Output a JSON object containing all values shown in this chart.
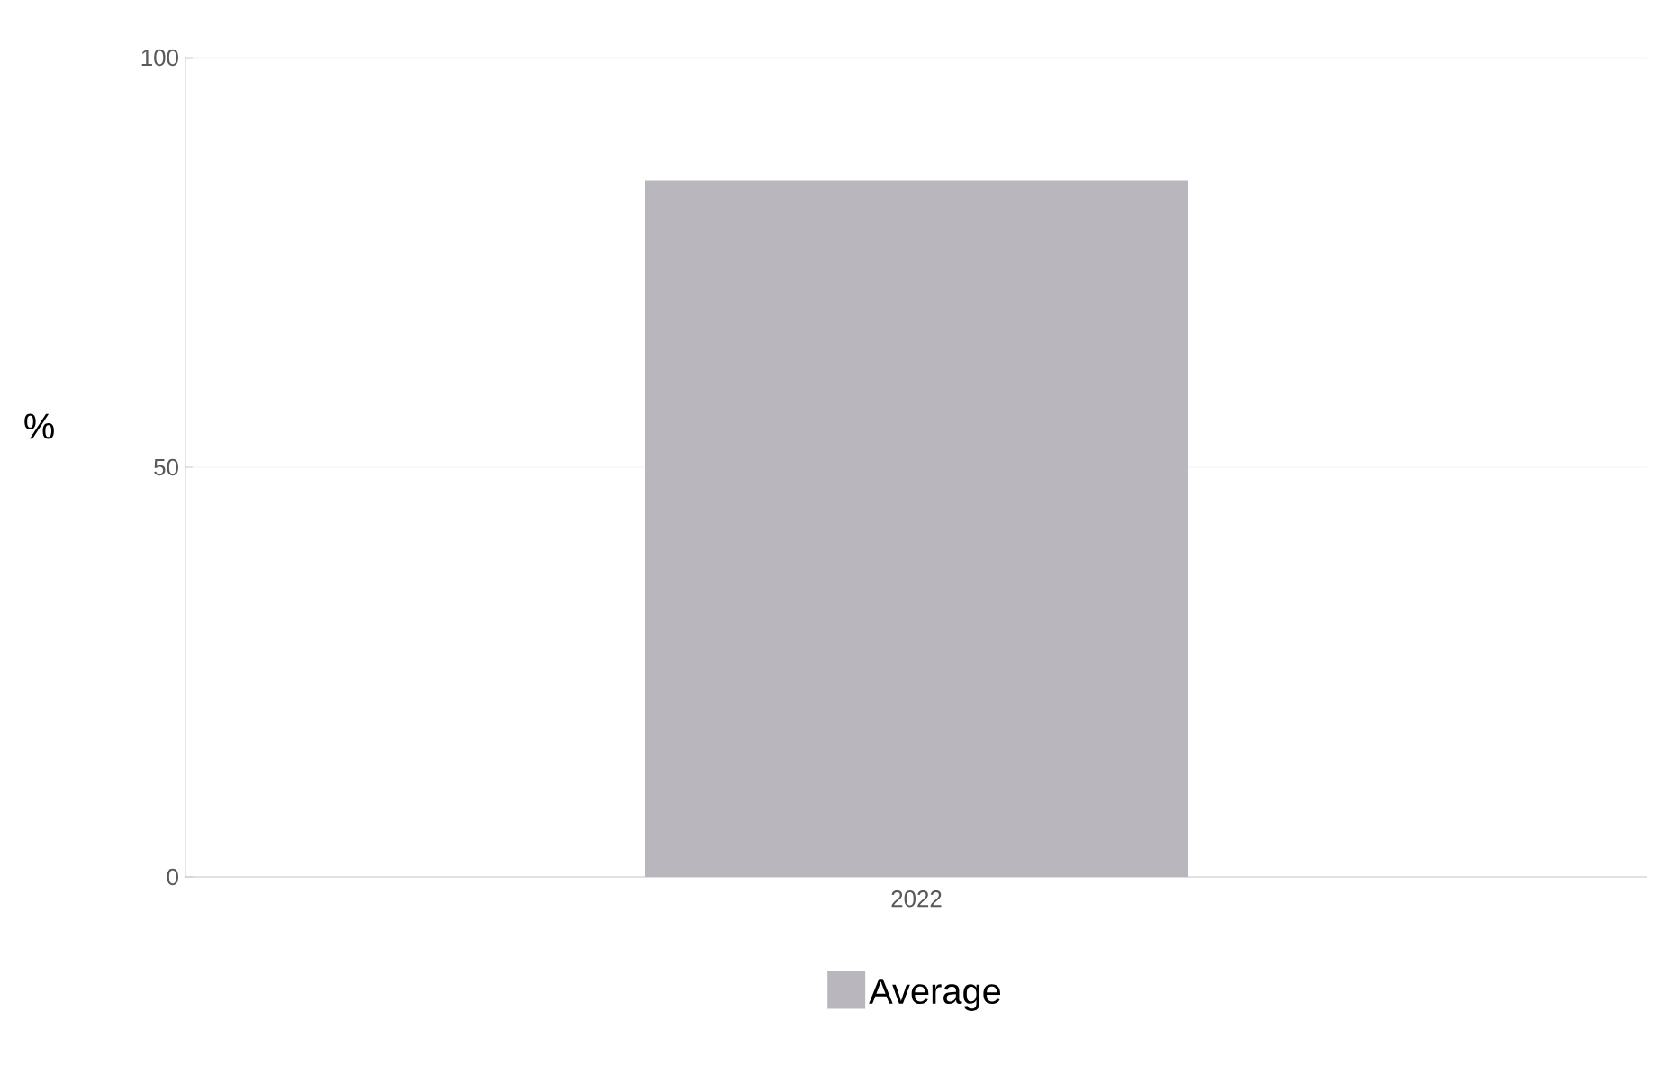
{
  "chart_data": {
    "type": "bar",
    "ylabel": "%",
    "categories": [
      "2022"
    ],
    "series": [
      {
        "color": "#0f69af",
        "values": [
          null
        ]
      },
      {
        "name": "Average",
        "color": "#b9b7bd",
        "values": [
          85
        ]
      }
    ],
    "ylim": [
      0,
      100
    ],
    "yticks": [
      0,
      50,
      100
    ],
    "grid": "y",
    "legend": "bottom"
  }
}
